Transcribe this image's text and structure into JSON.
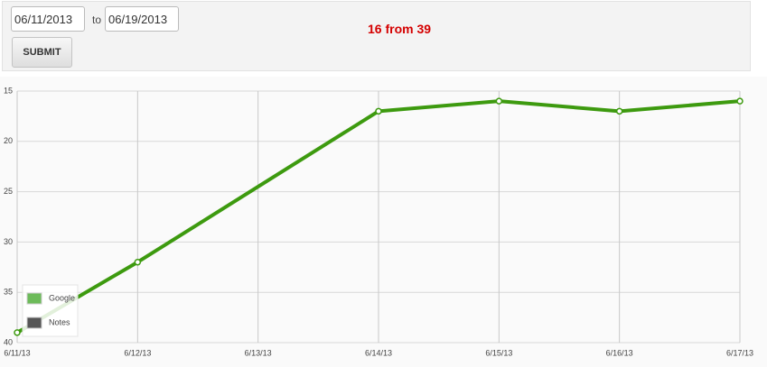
{
  "form": {
    "from_date": "06/11/2013",
    "separator": "to",
    "to_date": "06/19/2013",
    "submit": "SUBMIT",
    "status": "16 from 39"
  },
  "chart_data": {
    "type": "line",
    "x": [
      "6/11/13",
      "6/12/13",
      "6/14/13",
      "6/15/13",
      "6/16/13",
      "6/17/13"
    ],
    "xticks": [
      "6/11/13",
      "6/12/13",
      "6/13/13",
      "6/14/13",
      "6/15/13",
      "6/16/13",
      "6/17/13"
    ],
    "series": [
      {
        "name": "Google",
        "color": "#3d9a0f",
        "values": [
          39,
          32,
          17,
          16,
          17,
          16
        ]
      },
      {
        "name": "Notes",
        "color": "#555555",
        "values": [
          null,
          null,
          null,
          null,
          null,
          null
        ]
      }
    ],
    "ylim": [
      15,
      40
    ],
    "yticks": [
      15,
      20,
      25,
      30,
      35,
      40
    ],
    "y_inverted": true,
    "grid": true,
    "legend": "lower left"
  }
}
